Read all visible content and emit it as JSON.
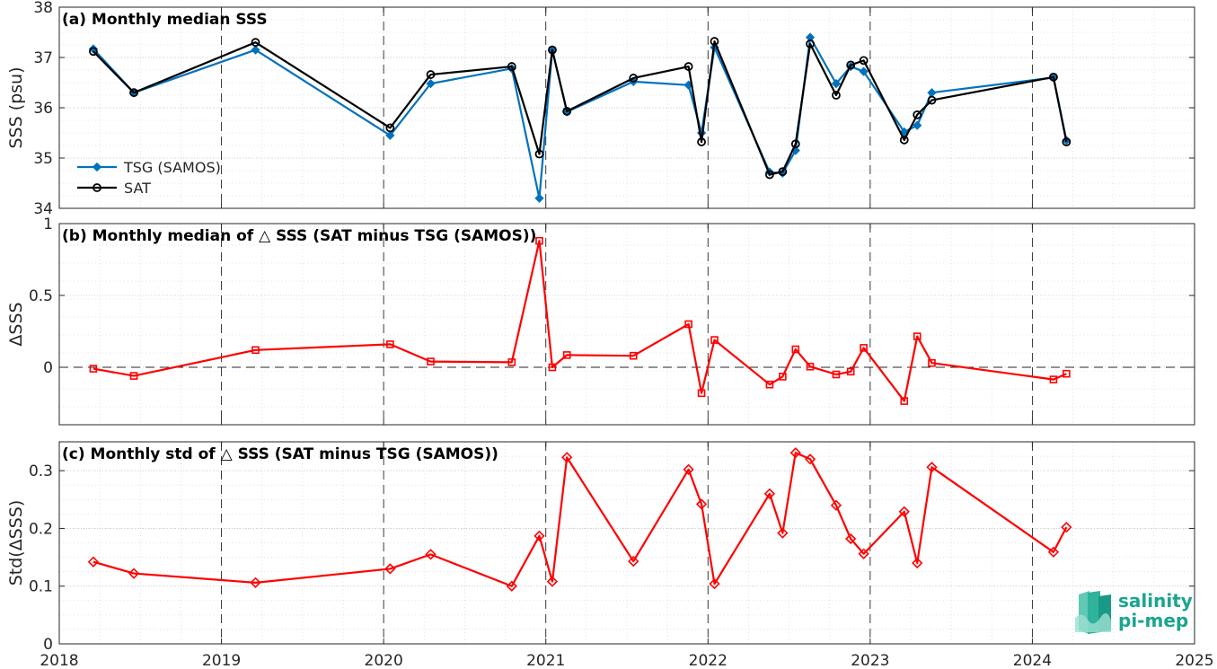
{
  "chart_data": [
    {
      "type": "line",
      "title": "(a) Monthly median SSS",
      "xlabel": "",
      "ylabel": "SSS (psu)",
      "xlim": [
        2018,
        2025
      ],
      "ylim": [
        34,
        38
      ],
      "yticks": [
        34,
        35,
        36,
        37,
        38
      ],
      "legend_position": "bottom-left",
      "series": [
        {
          "name": "TSG (SAMOS)",
          "color": "#0072bd",
          "marker": "diamond",
          "x": [
            2018.21,
            2018.46,
            2019.21,
            2020.04,
            2020.29,
            2020.79,
            2020.96,
            2021.04,
            2021.13,
            2021.54,
            2021.88,
            2021.96,
            2022.04,
            2022.38,
            2022.46,
            2022.54,
            2022.63,
            2022.79,
            2022.88,
            2022.96,
            2023.21,
            2023.29,
            2023.38,
            2024.13,
            2024.21
          ],
          "y": [
            37.17,
            36.3,
            37.15,
            35.45,
            36.48,
            36.78,
            34.2,
            37.15,
            35.92,
            36.52,
            36.45,
            35.5,
            37.2,
            34.72,
            34.7,
            35.15,
            37.4,
            36.48,
            36.82,
            36.72,
            35.52,
            35.65,
            36.3,
            36.6,
            35.35
          ]
        },
        {
          "name": "SAT",
          "color": "#000000",
          "marker": "circle",
          "x": [
            2018.21,
            2018.46,
            2019.21,
            2020.04,
            2020.29,
            2020.79,
            2020.96,
            2021.04,
            2021.13,
            2021.54,
            2021.88,
            2021.96,
            2022.04,
            2022.38,
            2022.46,
            2022.54,
            2022.63,
            2022.79,
            2022.88,
            2022.96,
            2023.21,
            2023.29,
            2023.38,
            2024.13,
            2024.21
          ],
          "y": [
            37.12,
            36.3,
            37.3,
            35.6,
            36.66,
            36.82,
            35.08,
            37.15,
            35.93,
            36.59,
            36.82,
            35.32,
            37.32,
            34.67,
            34.73,
            35.28,
            37.27,
            36.25,
            36.85,
            36.94,
            35.36,
            35.86,
            36.15,
            36.61,
            35.32
          ]
        }
      ]
    },
    {
      "type": "line",
      "title": "(b) Monthly median of △ SSS (SAT minus TSG (SAMOS))",
      "xlabel": "",
      "ylabel": "ΔSSS",
      "xlim": [
        2018,
        2025
      ],
      "ylim": [
        -0.4,
        1
      ],
      "yticks": [
        0,
        0.5,
        1
      ],
      "zero_line": true,
      "series": [
        {
          "color": "#ff0000",
          "marker": "square",
          "x": [
            2018.21,
            2018.46,
            2019.21,
            2020.04,
            2020.29,
            2020.79,
            2020.96,
            2021.04,
            2021.13,
            2021.54,
            2021.88,
            2021.96,
            2022.04,
            2022.38,
            2022.46,
            2022.54,
            2022.63,
            2022.79,
            2022.88,
            2022.96,
            2023.21,
            2023.29,
            2023.38,
            2024.13,
            2024.21
          ],
          "y": [
            -0.01,
            -0.06,
            0.12,
            0.16,
            0.04,
            0.035,
            0.88,
            0.0,
            0.085,
            0.08,
            0.3,
            -0.18,
            0.19,
            -0.12,
            -0.065,
            0.125,
            0.005,
            -0.05,
            -0.03,
            0.135,
            -0.235,
            0.215,
            0.03,
            -0.085,
            -0.045
          ]
        }
      ]
    },
    {
      "type": "line",
      "title": "(c) Monthly std of △ SSS (SAT minus TSG (SAMOS))",
      "xlabel": "",
      "ylabel": "Std(ΔSSS)",
      "xlim": [
        2018,
        2025
      ],
      "ylim": [
        0,
        0.35
      ],
      "yticks": [
        0,
        0.1,
        0.2,
        0.3
      ],
      "xticks": [
        2018,
        2019,
        2020,
        2021,
        2022,
        2023,
        2024,
        2025
      ],
      "series": [
        {
          "color": "#ff0000",
          "marker": "diamond",
          "x": [
            2018.21,
            2018.46,
            2019.21,
            2020.04,
            2020.29,
            2020.79,
            2020.96,
            2021.04,
            2021.13,
            2021.54,
            2021.88,
            2021.96,
            2022.04,
            2022.38,
            2022.46,
            2022.54,
            2022.63,
            2022.79,
            2022.88,
            2022.96,
            2023.21,
            2023.29,
            2023.38,
            2024.13,
            2024.21
          ],
          "y": [
            0.142,
            0.122,
            0.106,
            0.13,
            0.155,
            0.1,
            0.187,
            0.108,
            0.323,
            0.143,
            0.302,
            0.242,
            0.104,
            0.26,
            0.192,
            0.331,
            0.32,
            0.24,
            0.182,
            0.156,
            0.229,
            0.14,
            0.306,
            0.159,
            0.202
          ]
        }
      ]
    }
  ],
  "logo": {
    "line1": "salinity",
    "line2": "pi-mep"
  },
  "colors": {
    "tsg": "#0072bd",
    "sat": "#000000",
    "delta": "#ff0000",
    "logo": "#1aa58f"
  }
}
